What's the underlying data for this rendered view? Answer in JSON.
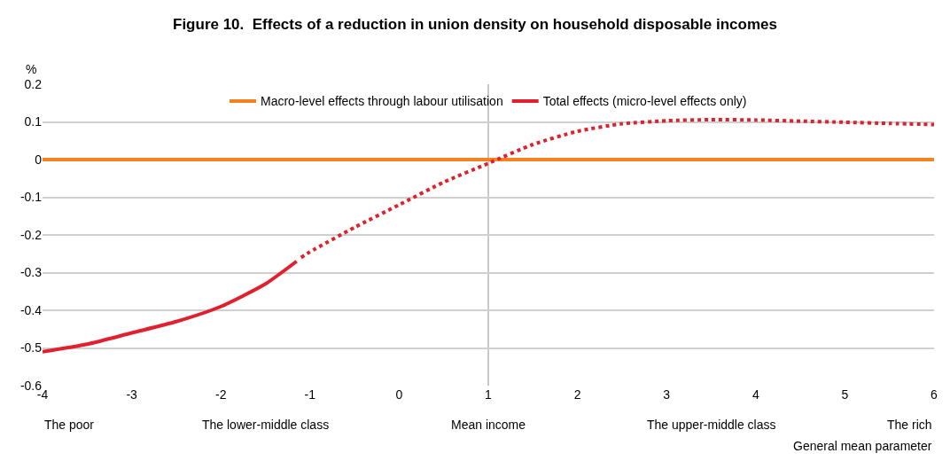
{
  "chart_data": {
    "type": "line",
    "title": "Figure 10.  Effects of a reduction in union density on household disposable incomes",
    "ylabel": "%",
    "xlabel": "General mean parameter",
    "xlim": [
      -4,
      6
    ],
    "xticks": [
      -4,
      -3,
      -2,
      -1,
      0,
      1,
      2,
      3,
      4,
      5,
      6
    ],
    "ylim": [
      -0.6,
      0.2
    ],
    "yticks": [
      -0.6,
      -0.5,
      -0.4,
      -0.3,
      -0.2,
      -0.1,
      0,
      0.1,
      0.2
    ],
    "grid": "y",
    "legend": "top",
    "marker": "none",
    "series": [
      {
        "name": "Macro-level effects through labour utilisation",
        "color": "#f58220",
        "line_style": "solid",
        "x": [
          -4,
          6
        ],
        "values": [
          0,
          0
        ]
      },
      {
        "name": "Total effects (micro-level effects only)",
        "color": "#e0202c",
        "line_style": "solid",
        "x": [
          -4,
          -3.5,
          -3,
          -2.5,
          -2,
          -1.5,
          -1.15
        ],
        "values": [
          -0.51,
          -0.49,
          -0.46,
          -0.43,
          -0.39,
          -0.33,
          -0.27
        ]
      },
      {
        "color": "#e0202c",
        "line_style": "dotted",
        "x": [
          -1.1,
          -1,
          -0.5,
          0,
          0.5,
          1,
          1.5,
          2,
          2.5,
          3,
          3.5,
          4,
          4.5,
          5,
          5.5,
          6
        ],
        "values": [
          -0.26,
          -0.245,
          -0.18,
          -0.12,
          -0.06,
          -0.01,
          0.04,
          0.075,
          0.095,
          0.103,
          0.106,
          0.105,
          0.102,
          0.099,
          0.096,
          0.093
        ]
      }
    ],
    "ref_lines": [
      {
        "axis": "x",
        "value": 1,
        "color": "#c8c8c8"
      }
    ],
    "annotations": [
      "The poor",
      "The lower-middle class",
      "Mean income",
      "The upper-middle class",
      "The rich"
    ]
  }
}
